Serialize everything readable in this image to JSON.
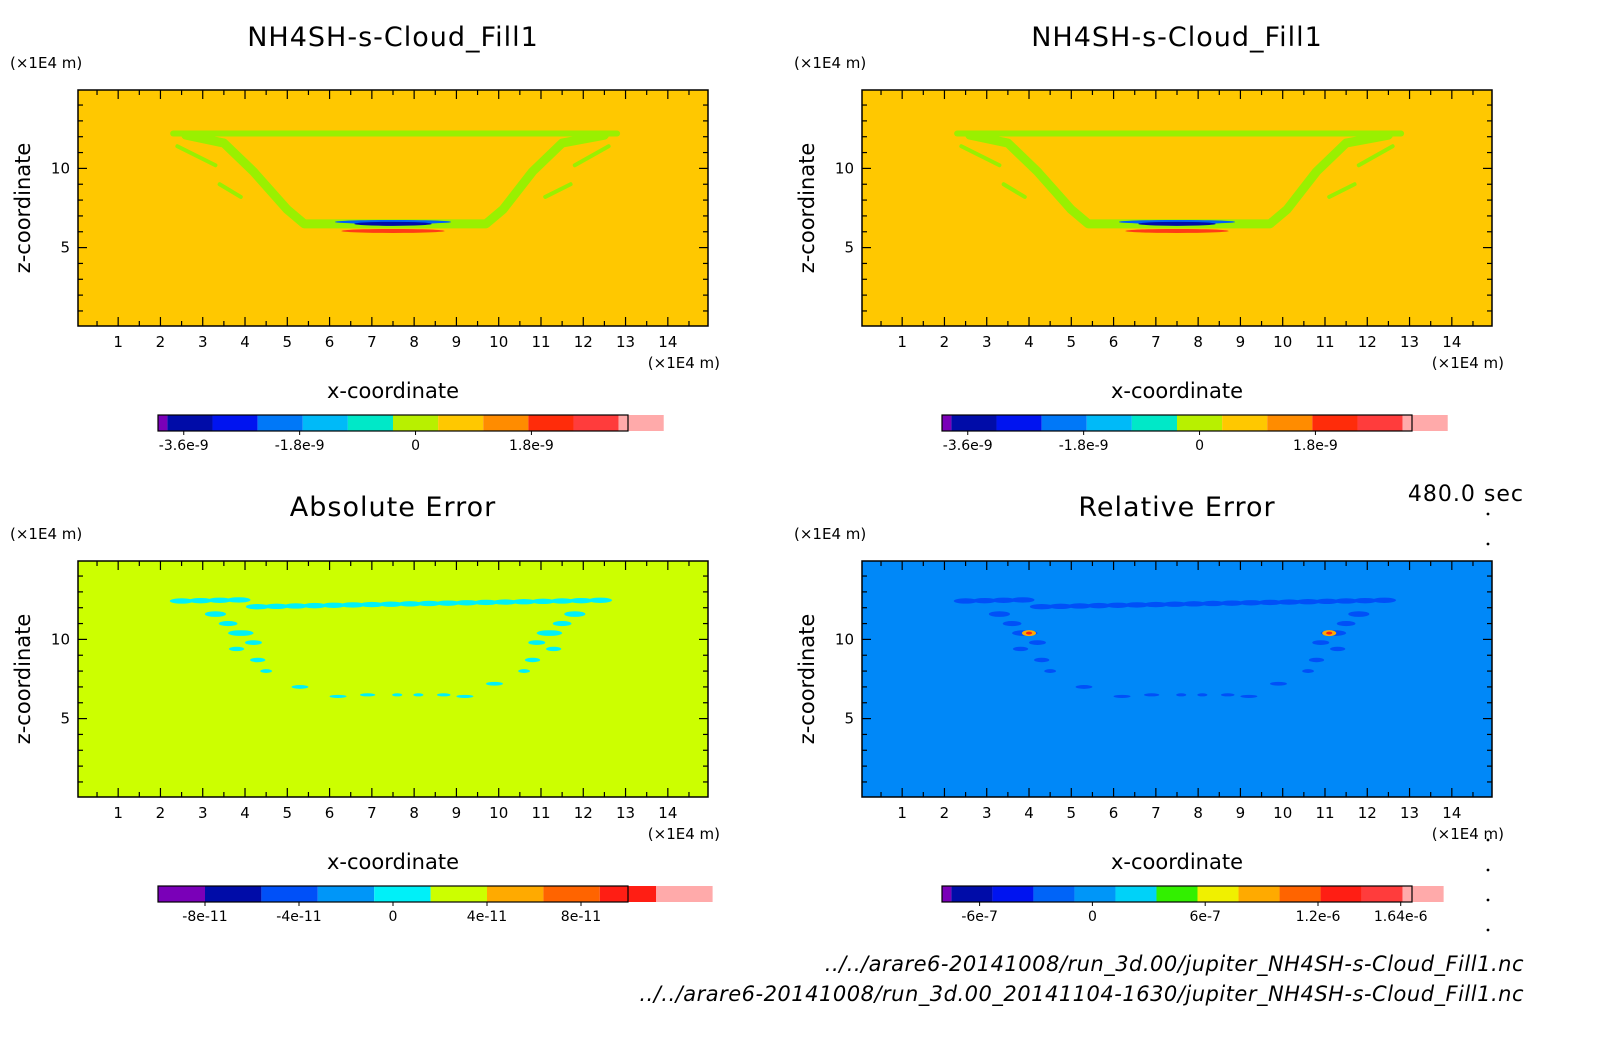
{
  "time_label": "480.0 sec",
  "files": [
    "../../arare6-20141008/run_3d.00/jupiter_NH4SH-s-Cloud_Fill1.nc",
    "../../arare6-20141008/run_3d.00_20141104-1630/jupiter_NH4SH-s-Cloud_Fill1.nc"
  ],
  "chart_data": [
    {
      "type": "heatmap",
      "title": "NH4SH-s-Cloud_Fill1",
      "xlabel": "x-coordinate",
      "ylabel": "z-coordinate",
      "x_unit": "(×1E4 m)",
      "y_unit": "(×1E4 m)",
      "xlim": [
        0.05,
        14.95
      ],
      "ylim": [
        0.05,
        14.95
      ],
      "x_ticks": [
        1,
        2,
        3,
        4,
        5,
        6,
        7,
        8,
        9,
        10,
        11,
        12,
        13,
        14
      ],
      "y_ticks": [
        5,
        10
      ],
      "background_color": "#ffc800",
      "pattern": "field",
      "colorbar": {
        "colors": [
          "#7a00b8",
          "#000ca8",
          "#0014f0",
          "#0078f8",
          "#00baf8",
          "#00e8c8",
          "#b8f000",
          "#ffc800",
          "#ff8c00",
          "#ff2c0a",
          "#ff3c3c",
          "#ffaaaa"
        ],
        "range": [
          -4e-09,
          3.3e-09
        ],
        "ticks": [
          -3.6e-09,
          -1.8e-09,
          0,
          1.8e-09
        ],
        "tick_labels": [
          "-3.6e-9",
          "-1.8e-9",
          "0",
          "1.8e-9"
        ]
      }
    },
    {
      "type": "heatmap",
      "title": "NH4SH-s-Cloud_Fill1",
      "xlabel": "x-coordinate",
      "ylabel": "z-coordinate",
      "x_unit": "(×1E4 m)",
      "y_unit": "(×1E4 m)",
      "xlim": [
        0.05,
        14.95
      ],
      "ylim": [
        0.05,
        14.95
      ],
      "x_ticks": [
        1,
        2,
        3,
        4,
        5,
        6,
        7,
        8,
        9,
        10,
        11,
        12,
        13,
        14
      ],
      "y_ticks": [
        5,
        10
      ],
      "background_color": "#ffc800",
      "pattern": "field",
      "colorbar": {
        "colors": [
          "#7a00b8",
          "#000ca8",
          "#0014f0",
          "#0078f8",
          "#00baf8",
          "#00e8c8",
          "#b8f000",
          "#ffc800",
          "#ff8c00",
          "#ff2c0a",
          "#ff3c3c",
          "#ffaaaa"
        ],
        "range": [
          -4e-09,
          3.3e-09
        ],
        "ticks": [
          -3.6e-09,
          -1.8e-09,
          0,
          1.8e-09
        ],
        "tick_labels": [
          "-3.6e-9",
          "-1.8e-9",
          "0",
          "1.8e-9"
        ]
      }
    },
    {
      "type": "heatmap",
      "title": "Absolute Error",
      "xlabel": "x-coordinate",
      "ylabel": "z-coordinate",
      "x_unit": "(×1E4 m)",
      "y_unit": "(×1E4 m)",
      "xlim": [
        0.05,
        14.95
      ],
      "ylim": [
        0.05,
        14.95
      ],
      "x_ticks": [
        1,
        2,
        3,
        4,
        5,
        6,
        7,
        8,
        9,
        10,
        11,
        12,
        13,
        14
      ],
      "y_ticks": [
        5,
        10
      ],
      "background_color": "#ccff00",
      "pattern": "abs",
      "colorbar": {
        "colors": [
          "#7a00b8",
          "#000ca8",
          "#0050f8",
          "#0096f8",
          "#00f0f8",
          "#ccff00",
          "#ffaa00",
          "#ff6400",
          "#ff1e14",
          "#ffaaaa"
        ],
        "range": [
          -1e-10,
          1e-10
        ],
        "ticks": [
          -8e-11,
          -4e-11,
          0,
          4e-11,
          8e-11
        ],
        "tick_labels": [
          "-8e-11",
          "-4e-11",
          "0",
          "4e-11",
          "8e-11"
        ]
      }
    },
    {
      "type": "heatmap",
      "title": "Relative Error",
      "xlabel": "x-coordinate",
      "ylabel": "z-coordinate",
      "x_unit": "(×1E4 m)",
      "y_unit": "(×1E4 m)",
      "xlim": [
        0.05,
        14.95
      ],
      "ylim": [
        0.05,
        14.95
      ],
      "x_ticks": [
        1,
        2,
        3,
        4,
        5,
        6,
        7,
        8,
        9,
        10,
        11,
        12,
        13,
        14
      ],
      "y_ticks": [
        5,
        10
      ],
      "background_color": "#0088f8",
      "pattern": "rel",
      "colorbar": {
        "colors": [
          "#7a00b8",
          "#000ca8",
          "#0014f0",
          "#0064f8",
          "#0096f8",
          "#00d2f8",
          "#32f000",
          "#f0f000",
          "#ffaa00",
          "#ff6400",
          "#ff1e14",
          "#ff3c3c",
          "#ffaaaa"
        ],
        "range": [
          -8e-07,
          1.7e-06
        ],
        "ticks": [
          -6e-07,
          0,
          6e-07,
          1.2e-06,
          1.64e-06
        ],
        "tick_labels": [
          "-6e-7",
          "0",
          "6e-7",
          "1.2e-6",
          "1.64e-6"
        ]
      }
    }
  ]
}
